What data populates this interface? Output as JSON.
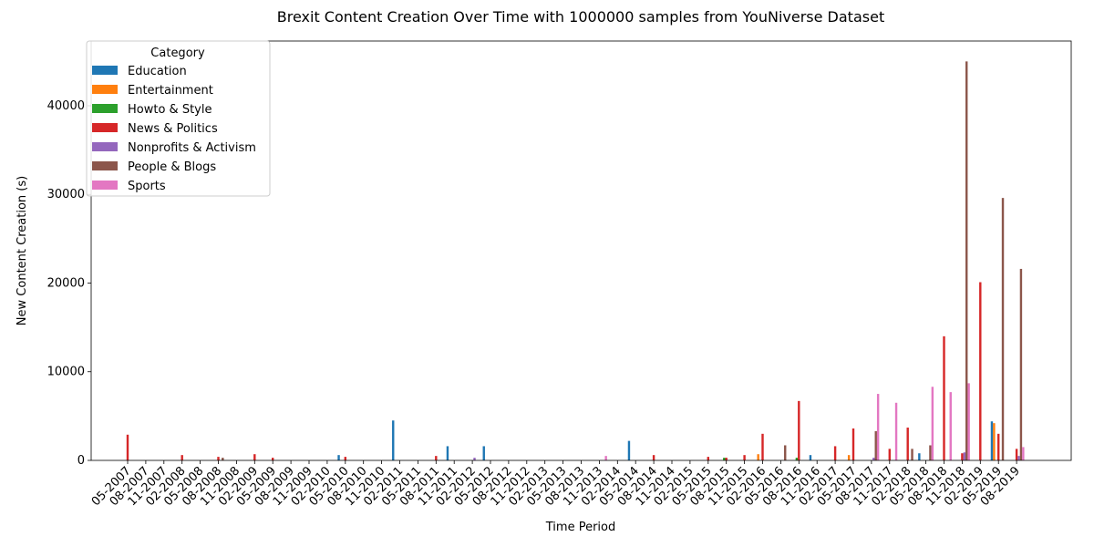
{
  "chart_data": {
    "type": "bar",
    "title": "Brexit Content Creation Over Time with 1000000 samples from YouNiverse Dataset",
    "x_label": "Time Period",
    "y_label": "New Content Creation (s)",
    "legend_title": "Category",
    "legend_loc": "upper left",
    "categories": [
      "05-2007",
      "08-2007",
      "11-2007",
      "02-2008",
      "05-2008",
      "08-2008",
      "11-2008",
      "02-2009",
      "05-2009",
      "08-2009",
      "11-2009",
      "02-2010",
      "05-2010",
      "08-2010",
      "11-2010",
      "02-2011",
      "05-2011",
      "08-2011",
      "11-2011",
      "02-2012",
      "05-2012",
      "08-2012",
      "11-2012",
      "02-2013",
      "05-2013",
      "08-2013",
      "11-2013",
      "02-2014",
      "05-2014",
      "08-2014",
      "11-2014",
      "02-2015",
      "05-2015",
      "08-2015",
      "11-2015",
      "02-2016",
      "05-2016",
      "08-2016",
      "11-2016",
      "02-2017",
      "05-2017",
      "08-2017",
      "11-2017",
      "02-2018",
      "05-2018",
      "08-2018",
      "11-2018",
      "02-2019",
      "05-2019",
      "08-2019"
    ],
    "series": [
      {
        "name": "Education",
        "color": "#1f77b4",
        "values": [
          0,
          0,
          0,
          0,
          0,
          0,
          0,
          0,
          0,
          0,
          0,
          0,
          600,
          0,
          0,
          4500,
          0,
          0,
          1600,
          0,
          1600,
          0,
          0,
          0,
          0,
          0,
          0,
          0,
          2200,
          0,
          0,
          0,
          0,
          0,
          0,
          0,
          0,
          0,
          600,
          0,
          0,
          0,
          0,
          0,
          800,
          0,
          0,
          0,
          4400,
          0
        ]
      },
      {
        "name": "Entertainment",
        "color": "#ff7f0e",
        "values": [
          0,
          0,
          0,
          0,
          0,
          0,
          0,
          0,
          0,
          0,
          0,
          0,
          0,
          0,
          0,
          0,
          0,
          0,
          0,
          0,
          0,
          0,
          0,
          0,
          0,
          0,
          0,
          0,
          0,
          0,
          0,
          0,
          0,
          0,
          0,
          700,
          0,
          0,
          0,
          0,
          600,
          0,
          0,
          0,
          0,
          0,
          0,
          0,
          4200,
          0
        ]
      },
      {
        "name": "Howto & Style",
        "color": "#2ca02c",
        "values": [
          0,
          0,
          0,
          0,
          0,
          0,
          0,
          0,
          0,
          0,
          0,
          0,
          0,
          0,
          0,
          0,
          0,
          0,
          0,
          0,
          0,
          0,
          0,
          0,
          0,
          0,
          0,
          0,
          0,
          0,
          0,
          0,
          0,
          300,
          0,
          0,
          0,
          300,
          0,
          0,
          0,
          0,
          0,
          0,
          0,
          0,
          0,
          0,
          0,
          0
        ]
      },
      {
        "name": "News & Politics",
        "color": "#d62728",
        "values": [
          2900,
          0,
          0,
          600,
          0,
          400,
          0,
          700,
          300,
          0,
          0,
          0,
          400,
          0,
          0,
          0,
          0,
          500,
          0,
          0,
          0,
          0,
          0,
          0,
          0,
          0,
          0,
          0,
          0,
          600,
          0,
          0,
          400,
          300,
          600,
          3000,
          0,
          6700,
          0,
          1600,
          3600,
          0,
          1300,
          3700,
          0,
          14000,
          800,
          20100,
          3000,
          1300
        ]
      },
      {
        "name": "Nonprofits & Activism",
        "color": "#9467bd",
        "values": [
          0,
          0,
          0,
          0,
          0,
          0,
          0,
          0,
          0,
          0,
          0,
          0,
          0,
          0,
          0,
          0,
          0,
          0,
          0,
          300,
          0,
          0,
          0,
          0,
          0,
          0,
          0,
          0,
          0,
          0,
          0,
          0,
          0,
          0,
          0,
          0,
          0,
          0,
          0,
          0,
          0,
          300,
          0,
          0,
          0,
          0,
          900,
          0,
          0,
          500
        ]
      },
      {
        "name": "People & Blogs",
        "color": "#8c564b",
        "values": [
          0,
          0,
          0,
          0,
          0,
          300,
          0,
          0,
          0,
          0,
          0,
          0,
          0,
          0,
          0,
          0,
          0,
          0,
          0,
          0,
          0,
          0,
          0,
          0,
          0,
          0,
          0,
          0,
          0,
          0,
          0,
          0,
          0,
          0,
          0,
          0,
          1700,
          0,
          0,
          0,
          0,
          3300,
          0,
          1300,
          1700,
          0,
          45000,
          0,
          29600,
          21600
        ]
      },
      {
        "name": "Sports",
        "color": "#e377c2",
        "values": [
          0,
          0,
          0,
          0,
          0,
          0,
          0,
          0,
          0,
          0,
          0,
          0,
          0,
          0,
          0,
          0,
          0,
          0,
          0,
          0,
          0,
          0,
          0,
          0,
          0,
          0,
          500,
          0,
          0,
          0,
          0,
          0,
          0,
          0,
          0,
          0,
          0,
          0,
          0,
          0,
          0,
          7500,
          6500,
          0,
          8300,
          7700,
          8700,
          0,
          0,
          1500
        ]
      }
    ],
    "ylim": [
      0,
      47300
    ],
    "yticks": [
      0,
      10000,
      20000,
      30000,
      40000
    ],
    "grid": false
  }
}
